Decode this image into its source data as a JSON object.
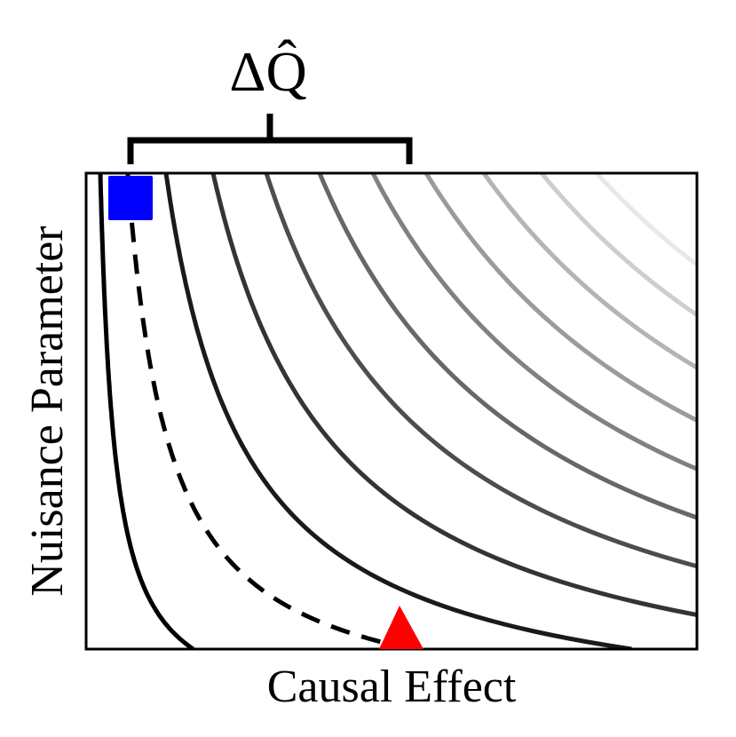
{
  "title": "ΔQ̂",
  "x_label": "Causal Effect",
  "y_label": "Nuisance Parameter"
}
